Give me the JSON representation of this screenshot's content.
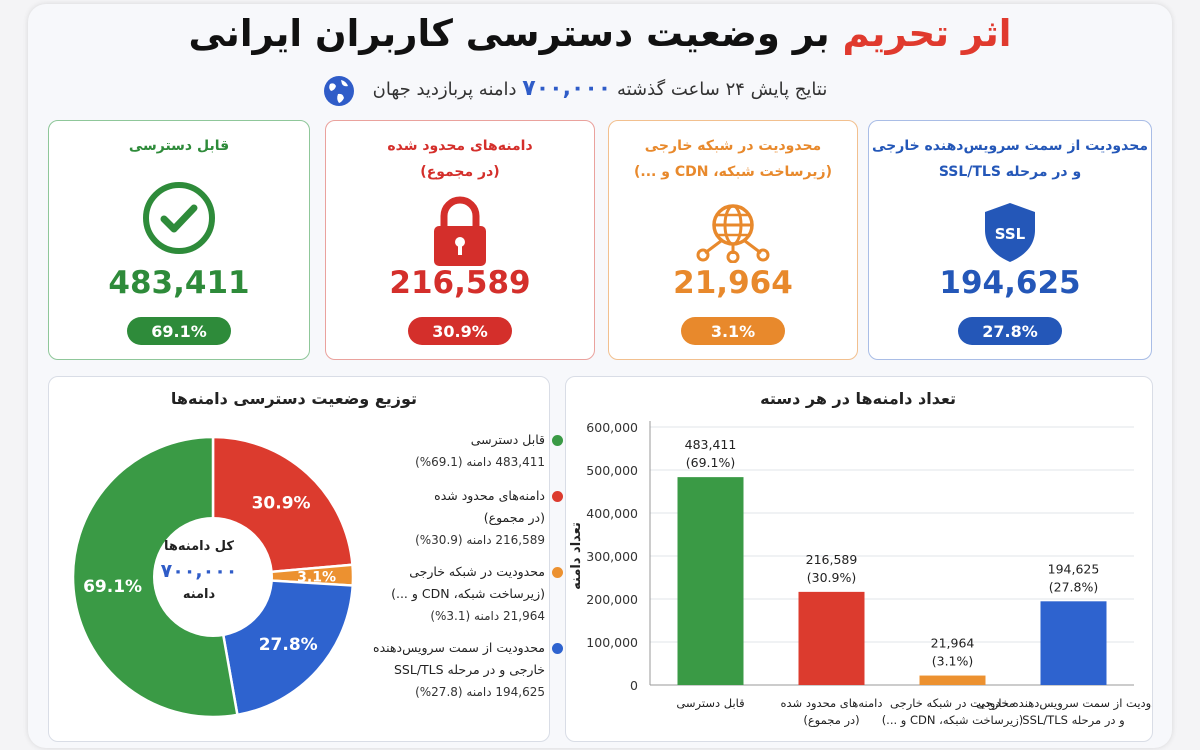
{
  "header": {
    "title_accent": "اثر تحریم",
    "title_rest": " بر وضعیت دسترسی کاربران ایرانی",
    "subtitle_pre": "نتایج پایش ۲۴ ساعت گذشته",
    "subtitle_num": "۷۰۰,۰۰۰",
    "subtitle_post": "دامنه پربازدید جهان"
  },
  "cards": [
    {
      "title": "قابل دسترسی",
      "subtitle": "",
      "value": "483,411",
      "percent": "69.1%",
      "color": "#2e8b3a",
      "icon": "check-circle-icon"
    },
    {
      "title": "دامنه‌های محدود شده",
      "subtitle": "(در مجموع)",
      "value": "216,589",
      "percent": "30.9%",
      "color": "#d42f2b",
      "icon": "lock-icon"
    },
    {
      "title": "محدودیت در شبکه خارجی",
      "subtitle": "(زیرساخت شبکه، CDN و ...)",
      "value": "21,964",
      "percent": "3.1%",
      "color": "#e8892c",
      "icon": "network-globe-icon"
    },
    {
      "title": "محدودیت از سمت سرویس‌دهنده خارجی",
      "subtitle": "و در مرحله SSL/TLS",
      "value": "194,625",
      "percent": "27.8%",
      "color": "#2457b8",
      "icon": "ssl-shield-icon"
    }
  ],
  "pie_panel": {
    "title": "توزیع وضعیت دسترسی دامنه‌ها",
    "center_line1": "کل دامنه‌ها",
    "center_num": "۷۰۰,۰۰۰",
    "center_line2": "دامنه",
    "legend": [
      {
        "line1": "قابل دسترسی",
        "line2": "",
        "detail": "483,411 دامنه (69.1%)"
      },
      {
        "line1": "دامنه‌های محدود شده",
        "line2": "(در مجموع)",
        "detail": "216,589 دامنه (30.9%)"
      },
      {
        "line1": "محدودیت در شبکه خارجی",
        "line2": "(زیرساخت شبکه، CDN و ...)",
        "detail": "21,964 دامنه (3.1%)"
      },
      {
        "line1": "محدودیت از سمت سرویس‌دهنده",
        "line2": "خارجی و در مرحله SSL/TLS",
        "detail": "194,625 دامنه (27.8%)"
      }
    ]
  },
  "bar_panel": {
    "title": "تعداد دامنه‌ها در هر دسته"
  },
  "chart_data": [
    {
      "type": "pie",
      "title": "توزیع وضعیت دسترسی دامنه‌ها",
      "slices": [
        {
          "label": "قابل دسترسی",
          "value": 69.1,
          "display": "69.1%",
          "color": "#3a9a45"
        },
        {
          "label": "دامنه‌های محدود شده",
          "value": 30.9,
          "display": "30.9%",
          "color": "#dc3b2e"
        },
        {
          "label": "محدودیت در شبکه خارجی",
          "value": 3.1,
          "display": "3.1%",
          "color": "#ec9130"
        },
        {
          "label": "محدودیت از سمت سرویس‌دهنده خارجی",
          "value": 27.8,
          "display": "27.8%",
          "color": "#2e63cf"
        }
      ]
    },
    {
      "type": "bar",
      "title": "تعداد دامنه‌ها در هر دسته",
      "ylabel": "تعداد دامنه",
      "ylim": [
        0,
        600000
      ],
      "yticks": [
        "0",
        "100,000",
        "200,000",
        "300,000",
        "400,000",
        "500,000",
        "600,000"
      ],
      "grid": true,
      "categories": [
        [
          "قابل دسترسی"
        ],
        [
          "دامنه‌های محدود شده",
          "(در مجموع)"
        ],
        [
          "محدودیت در شبکه خارجی",
          "(زیرساخت شبکه، CDN و ...)"
        ],
        [
          "محدودیت از سمت سرویس‌دهنده خارجی",
          "و در مرحله SSL/TLS"
        ]
      ],
      "values": [
        483411,
        216589,
        21964,
        194625
      ],
      "value_labels": [
        "483,411",
        "216,589",
        "21,964",
        "194,625"
      ],
      "percent_labels": [
        "(69.1%)",
        "(30.9%)",
        "(3.1%)",
        "(27.8%)"
      ],
      "colors": [
        "#3a9a45",
        "#dc3b2e",
        "#ec9130",
        "#2e63cf"
      ]
    }
  ]
}
